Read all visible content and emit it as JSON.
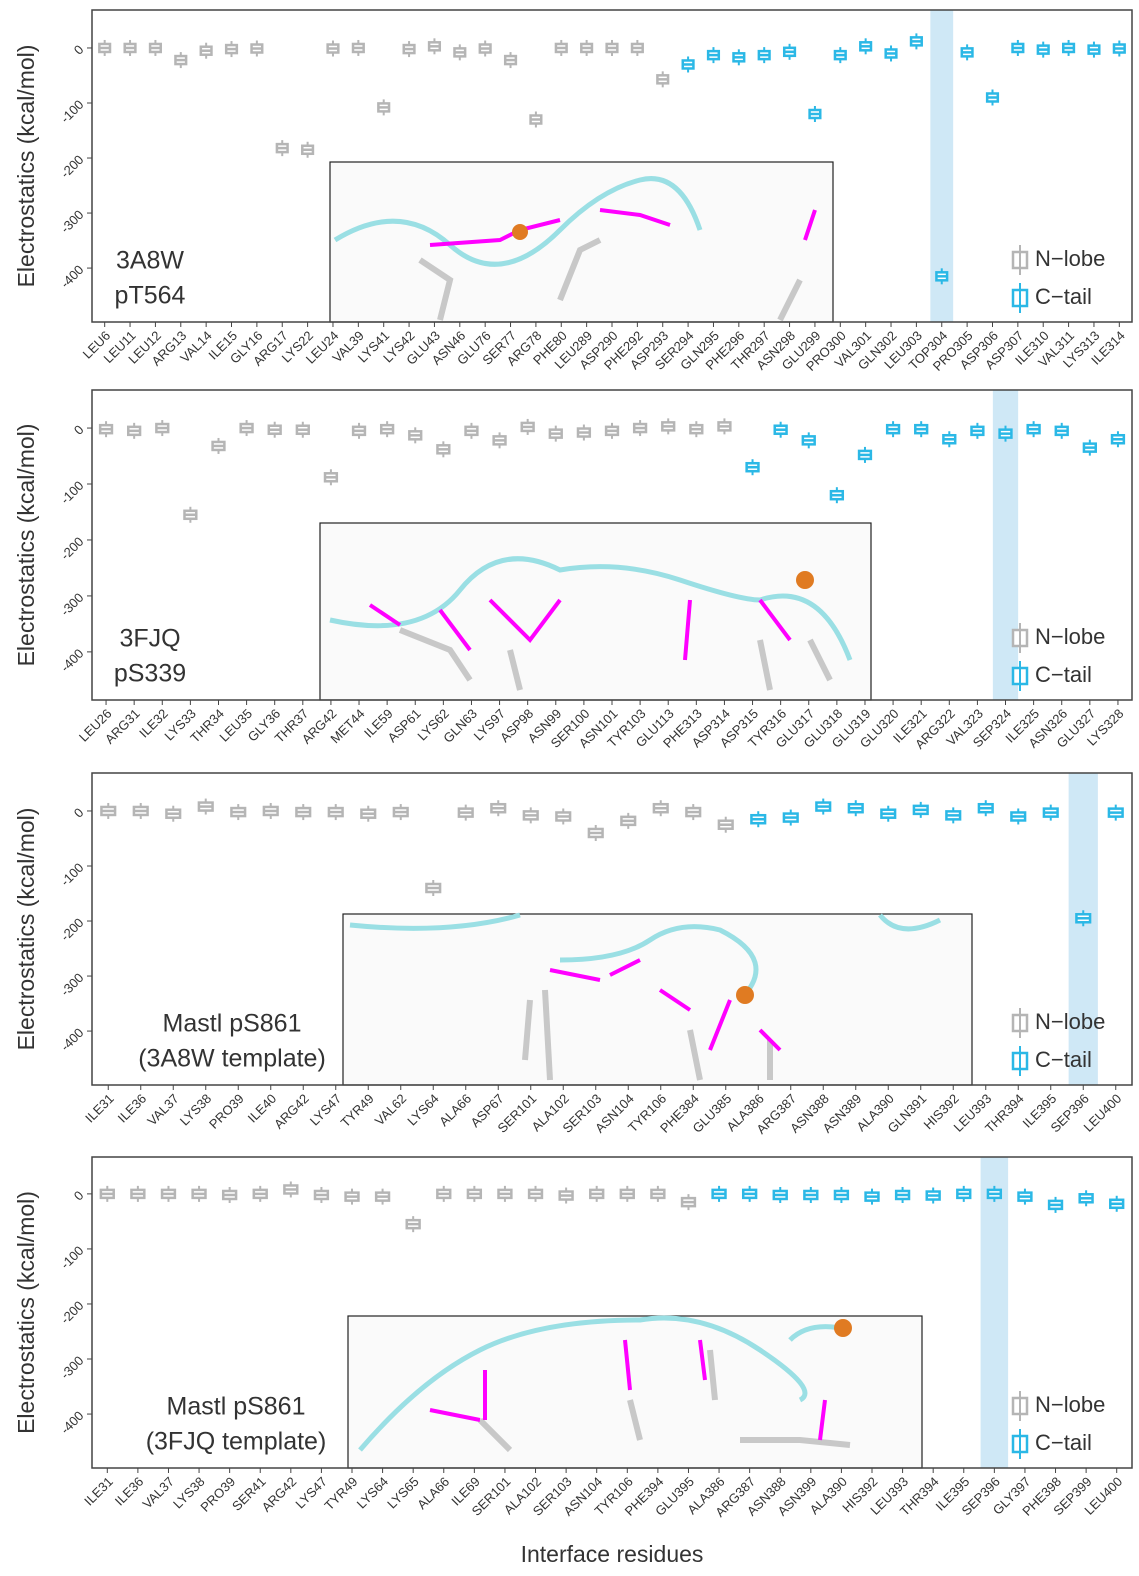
{
  "chart_data": [
    {
      "type": "box",
      "ylabel": "Electrostatics (kcal/mol)",
      "annotation": [
        "3A8W",
        "pT564"
      ],
      "legend": "lower right",
      "highlight": "TOP304",
      "ylim": [
        -498,
        69
      ],
      "yticks": [
        0,
        -100,
        -200,
        -300,
        -400
      ],
      "categories": [
        "LEU6",
        "LEU11",
        "LEU12",
        "ARG13",
        "VAL14",
        "ILE15",
        "GLY16",
        "ARG17",
        "LYS22",
        "LEU24",
        "VAL39",
        "LYS41",
        "LYS42",
        "GLU43",
        "ASN46",
        "GLU76",
        "SER77",
        "ARG78",
        "PHE80",
        "LEU289",
        "ASP290",
        "PHE292",
        "ASP293",
        "SER294",
        "GLN295",
        "PHE296",
        "THR297",
        "ASN298",
        "GLU299",
        "PRO300",
        "VAL301",
        "GLN302",
        "LEU303",
        "TOP304",
        "PRO305",
        "ASP306",
        "ASP307",
        "ILE310",
        "VAL311",
        "LYS313",
        "ILE314"
      ],
      "series": [
        {
          "name": "N−lobe",
          "color": "#b5b5b5",
          "values": [
            0,
            0,
            0,
            -22,
            -5,
            -2,
            -1,
            -182,
            -185,
            -1,
            0,
            -108,
            -2,
            3,
            -8,
            -1,
            -22,
            -130,
            0,
            0,
            0,
            0,
            -57,
            null,
            null,
            null,
            null,
            null,
            null,
            null,
            null,
            null,
            null,
            null,
            null,
            null,
            null,
            null,
            null,
            null,
            null
          ]
        },
        {
          "name": "C−tail",
          "color": "#2bb8e6",
          "values": [
            null,
            null,
            null,
            null,
            null,
            null,
            null,
            null,
            null,
            null,
            null,
            null,
            null,
            null,
            null,
            null,
            null,
            null,
            null,
            null,
            null,
            null,
            null,
            -30,
            -13,
            -17,
            -13,
            -7,
            -120,
            -13,
            3,
            -10,
            12,
            -415,
            -8,
            -90,
            0,
            -3,
            0,
            -3,
            -1
          ]
        }
      ]
    },
    {
      "type": "box",
      "ylabel": "Electrostatics (kcal/mol)",
      "annotation": [
        "3FJQ",
        "pS339"
      ],
      "legend": "lower right",
      "highlight": "SEP324",
      "ylim": [
        -486,
        68
      ],
      "yticks": [
        0,
        -100,
        -200,
        -300,
        -400
      ],
      "categories": [
        "LEU26",
        "ARG31",
        "ILE32",
        "LYS33",
        "THR34",
        "LEU35",
        "GLY36",
        "THR37",
        "ARG42",
        "MET44",
        "ILE59",
        "ASP61",
        "LYS62",
        "GLN63",
        "LYS97",
        "ASP98",
        "ASN99",
        "SER100",
        "ASN101",
        "TYR103",
        "GLU113",
        "PHE313",
        "ASP314",
        "ASP315",
        "TYR316",
        "GLU317",
        "GLU318",
        "GLU319",
        "GLU320",
        "ILE321",
        "ARG322",
        "VAL323",
        "SEP324",
        "ILE325",
        "ASN326",
        "GLU327",
        "LYS328"
      ],
      "series": [
        {
          "name": "N−lobe",
          "color": "#b5b5b5",
          "values": [
            -2,
            -5,
            0,
            -155,
            -32,
            0,
            -3,
            -3,
            -88,
            -5,
            -2,
            -13,
            -38,
            -5,
            -22,
            2,
            -10,
            -8,
            -5,
            0,
            3,
            -2,
            3,
            null,
            null,
            null,
            null,
            null,
            null,
            null,
            null,
            null,
            null,
            null,
            null,
            null,
            null
          ]
        },
        {
          "name": "C−tail",
          "color": "#2bb8e6",
          "values": [
            null,
            null,
            null,
            null,
            null,
            null,
            null,
            null,
            null,
            null,
            null,
            null,
            null,
            null,
            null,
            null,
            null,
            null,
            null,
            null,
            null,
            null,
            null,
            -70,
            -3,
            -22,
            -120,
            -48,
            -2,
            -2,
            -20,
            -5,
            -10,
            -2,
            -5,
            -35,
            -20
          ]
        }
      ]
    },
    {
      "type": "box",
      "ylabel": "Electrostatics (kcal/mol)",
      "annotation": [
        "Mastl pS861",
        "(3A8W template)"
      ],
      "legend": "lower right",
      "highlight": "SEP396",
      "ylim": [
        -498,
        69
      ],
      "yticks": [
        0,
        -100,
        -200,
        -300,
        -400
      ],
      "categories": [
        "ILE31",
        "ILE36",
        "VAL37",
        "LYS38",
        "PRO39",
        "ILE40",
        "ARG42",
        "LYS47",
        "TYR49",
        "VAL62",
        "LYS64",
        "ALA66",
        "ASP67",
        "SER101",
        "ALA102",
        "SER103",
        "ASN104",
        "TYR106",
        "PHE384",
        "GLU385",
        "ALA386",
        "ARG387",
        "ASN388",
        "ASN389",
        "ALA390",
        "GLN391",
        "HIS392",
        "LEU393",
        "THR394",
        "ILE395",
        "SEP396",
        "LEU400"
      ],
      "series": [
        {
          "name": "N−lobe",
          "color": "#b5b5b5",
          "values": [
            0,
            0,
            -5,
            8,
            -2,
            0,
            -2,
            -2,
            -5,
            -2,
            -140,
            -3,
            5,
            -8,
            -10,
            -40,
            -18,
            5,
            -2,
            -25,
            null,
            null,
            null,
            null,
            null,
            null,
            null,
            null,
            null,
            null,
            null,
            null
          ]
        },
        {
          "name": "C−tail",
          "color": "#2bb8e6",
          "values": [
            null,
            null,
            null,
            null,
            null,
            null,
            null,
            null,
            null,
            null,
            null,
            null,
            null,
            null,
            null,
            null,
            null,
            null,
            null,
            null,
            -15,
            -12,
            8,
            5,
            -5,
            2,
            -8,
            5,
            -10,
            -3,
            -195,
            -3
          ]
        }
      ]
    },
    {
      "type": "box",
      "ylabel": "Electrostatics (kcal/mol)",
      "xlabel": "Interface residues",
      "annotation": [
        "Mastl pS861",
        "(3FJQ template)"
      ],
      "legend": "lower right",
      "highlight": "SEP396",
      "ylim": [
        -498,
        67
      ],
      "yticks": [
        0,
        -100,
        -200,
        -300,
        -400
      ],
      "categories": [
        "ILE31",
        "ILE36",
        "VAL37",
        "LYS38",
        "PRO39",
        "SER41",
        "ARG42",
        "LYS47",
        "TYR49",
        "LYS64",
        "LYS65",
        "ALA66",
        "ILE69",
        "SER101",
        "ALA102",
        "SER103",
        "ASN104",
        "TYR106",
        "PHE394",
        "GLU395",
        "ALA386",
        "ARG387",
        "ASN388",
        "ASN399",
        "ALA390",
        "HIS392",
        "LEU393",
        "THR394",
        "ILE395",
        "SEP396",
        "GLY397",
        "PHE398",
        "SEP399",
        "LEU400"
      ],
      "series": [
        {
          "name": "N−lobe",
          "color": "#b5b5b5",
          "values": [
            0,
            0,
            0,
            0,
            -2,
            0,
            8,
            -2,
            -5,
            -5,
            -55,
            0,
            0,
            0,
            0,
            -3,
            0,
            0,
            0,
            -15,
            null,
            null,
            null,
            null,
            null,
            null,
            null,
            null,
            null,
            null,
            null,
            null,
            null,
            null
          ]
        },
        {
          "name": "C−tail",
          "color": "#2bb8e6",
          "values": [
            null,
            null,
            null,
            null,
            null,
            null,
            null,
            null,
            null,
            null,
            null,
            null,
            null,
            null,
            null,
            null,
            null,
            null,
            null,
            null,
            0,
            0,
            -2,
            -2,
            -2,
            -5,
            -2,
            -3,
            0,
            0,
            -5,
            -20,
            -8,
            -18
          ]
        }
      ]
    }
  ]
}
